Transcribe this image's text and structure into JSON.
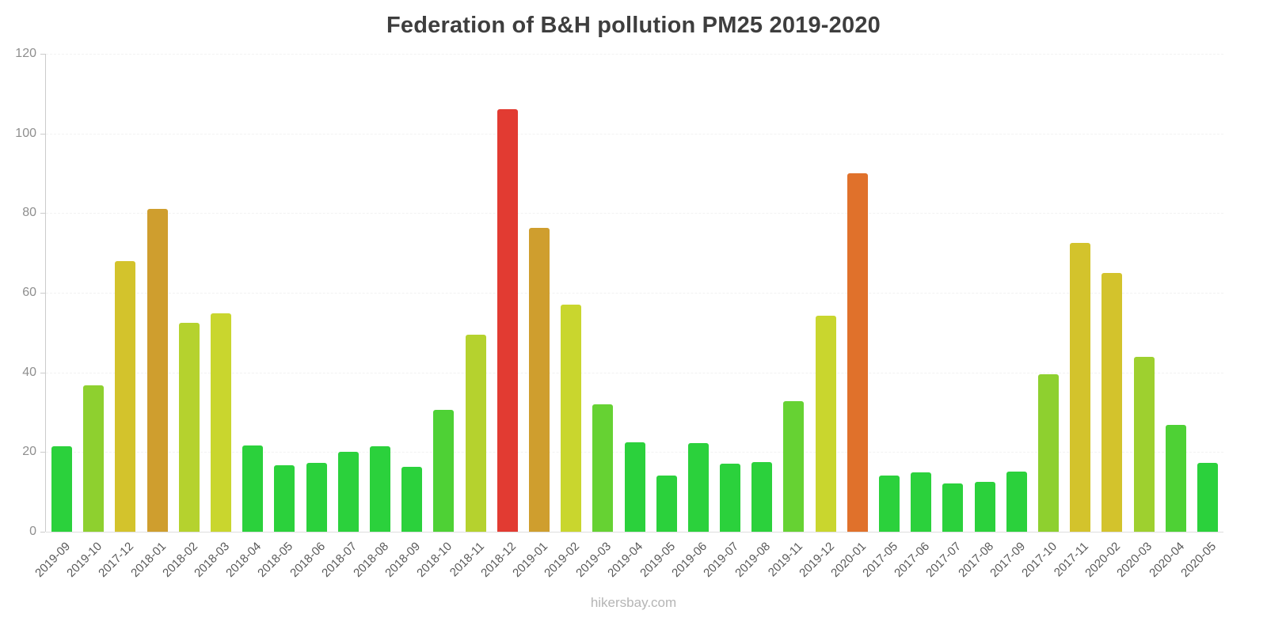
{
  "footer": "hikersbay.com",
  "chart_data": {
    "type": "bar",
    "title": "Federation of B&H pollution PM25 2019-2020",
    "xlabel": "",
    "ylabel": "",
    "ylim": [
      0,
      120
    ],
    "yticks": [
      0,
      20,
      40,
      60,
      80,
      100,
      120
    ],
    "grid": "faint-dashed",
    "legend": "none",
    "categories": [
      "2019-09",
      "2019-10",
      "2017-12",
      "2018-01",
      "2018-02",
      "2018-03",
      "2018-04",
      "2018-05",
      "2018-06",
      "2018-07",
      "2018-08",
      "2018-09",
      "2018-10",
      "2018-11",
      "2018-12",
      "2019-01",
      "2019-02",
      "2019-03",
      "2019-04",
      "2019-05",
      "2019-06",
      "2019-07",
      "2019-08",
      "2019-11",
      "2019-12",
      "2020-01",
      "2017-05",
      "2017-06",
      "2017-07",
      "2017-08",
      "2017-09",
      "2017-10",
      "2017-11",
      "2020-02",
      "2020-03",
      "2020-04",
      "2020-05"
    ],
    "values": [
      21.4,
      36.7,
      68,
      81,
      52.5,
      54.8,
      21.6,
      16.6,
      17.2,
      20,
      21.5,
      16.3,
      30.5,
      49.5,
      106,
      76.3,
      57,
      32,
      22.5,
      14.1,
      22.2,
      17.1,
      17.5,
      32.7,
      54.2,
      90,
      14.1,
      14.9,
      12.2,
      12.6,
      15.1,
      39.6,
      72.5,
      65,
      44,
      26.9,
      17.2
    ],
    "color_scale": [
      {
        "upto": 25,
        "color": "#2bd13c"
      },
      {
        "upto": 31,
        "color": "#4ed135"
      },
      {
        "upto": 35,
        "color": "#66d233"
      },
      {
        "upto": 42,
        "color": "#8ed02f"
      },
      {
        "upto": 47,
        "color": "#9ed02f"
      },
      {
        "upto": 53,
        "color": "#b5d22e"
      },
      {
        "upto": 58,
        "color": "#c9d62e"
      },
      {
        "upto": 73,
        "color": "#d3c32c"
      },
      {
        "upto": 85,
        "color": "#cf9e2e"
      },
      {
        "upto": 95,
        "color": "#e0712b"
      },
      {
        "upto": 999,
        "color": "#e23b32"
      }
    ],
    "axis_color": "#cccccc",
    "title_color": "#3e3e3e",
    "tick_label_color": "#8e8e8e",
    "category_label_color": "#595959",
    "watermark_color": "#b5b5b5"
  }
}
